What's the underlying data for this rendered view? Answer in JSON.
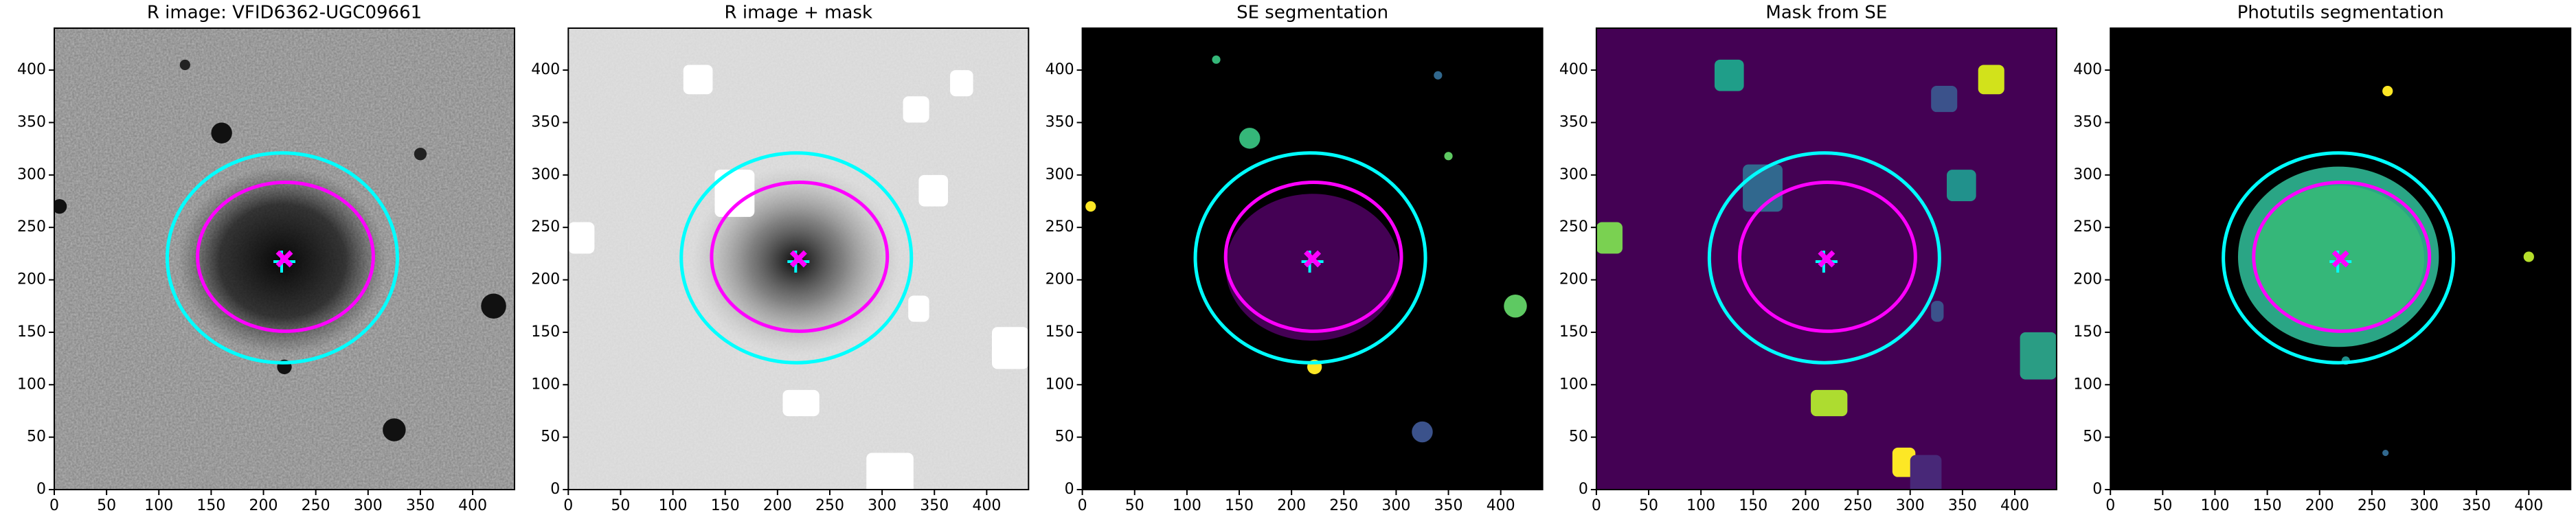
{
  "chart_data": [
    {
      "type": "image",
      "title": "R image: VFID6362-UGC09661",
      "xlim": [
        0,
        440
      ],
      "ylim": [
        0,
        440
      ],
      "xticks": [
        0,
        50,
        100,
        150,
        200,
        250,
        300,
        350,
        400
      ],
      "yticks": [
        0,
        50,
        100,
        150,
        200,
        250,
        300,
        350,
        400
      ],
      "ellipses": [
        {
          "color": "#00ffff",
          "x": 218,
          "y": 221,
          "rx": 110,
          "ry": 100
        },
        {
          "color": "#ff00ff",
          "x": 221,
          "y": 222,
          "rx": 84,
          "ry": 71
        }
      ],
      "marker": {
        "x": 220,
        "y": 220
      }
    },
    {
      "type": "image",
      "title": "R image + mask",
      "xlim": [
        0,
        440
      ],
      "ylim": [
        0,
        440
      ],
      "xticks": [
        0,
        50,
        100,
        150,
        200,
        250,
        300,
        350,
        400
      ],
      "yticks": [
        0,
        50,
        100,
        150,
        200,
        250,
        300,
        350,
        400
      ],
      "ellipses": [
        {
          "color": "#00ffff",
          "x": 218,
          "y": 221,
          "rx": 110,
          "ry": 100
        },
        {
          "color": "#ff00ff",
          "x": 221,
          "y": 222,
          "rx": 84,
          "ry": 71
        }
      ],
      "marker": {
        "x": 220,
        "y": 220
      }
    },
    {
      "type": "image",
      "title": "SE segmentation",
      "xlim": [
        0,
        440
      ],
      "ylim": [
        0,
        440
      ],
      "xticks": [
        0,
        50,
        100,
        150,
        200,
        250,
        300,
        350,
        400
      ],
      "yticks": [
        0,
        50,
        100,
        150,
        200,
        250,
        300,
        350,
        400
      ],
      "ellipses": [
        {
          "color": "#00ffff",
          "x": 218,
          "y": 221,
          "rx": 110,
          "ry": 100
        },
        {
          "color": "#ff00ff",
          "x": 221,
          "y": 222,
          "rx": 84,
          "ry": 71
        }
      ],
      "marker": {
        "x": 220,
        "y": 220
      }
    },
    {
      "type": "image",
      "title": "Mask from SE",
      "xlim": [
        0,
        440
      ],
      "ylim": [
        0,
        440
      ],
      "xticks": [
        0,
        50,
        100,
        150,
        200,
        250,
        300,
        350,
        400
      ],
      "yticks": [
        0,
        50,
        100,
        150,
        200,
        250,
        300,
        350,
        400
      ],
      "ellipses": [
        {
          "color": "#00ffff",
          "x": 218,
          "y": 221,
          "rx": 110,
          "ry": 100
        },
        {
          "color": "#ff00ff",
          "x": 221,
          "y": 222,
          "rx": 84,
          "ry": 71
        }
      ],
      "marker": {
        "x": 220,
        "y": 220
      }
    },
    {
      "type": "image",
      "title": "Photutils segmentation",
      "xlim": [
        0,
        440
      ],
      "ylim": [
        0,
        440
      ],
      "xticks": [
        0,
        50,
        100,
        150,
        200,
        250,
        300,
        350,
        400
      ],
      "yticks": [
        0,
        50,
        100,
        150,
        200,
        250,
        300,
        350,
        400
      ],
      "ellipses": [
        {
          "color": "#00ffff",
          "x": 218,
          "y": 221,
          "rx": 110,
          "ry": 100
        },
        {
          "color": "#ff00ff",
          "x": 221,
          "y": 222,
          "rx": 84,
          "ry": 71
        }
      ],
      "marker": {
        "x": 220,
        "y": 220
      }
    }
  ]
}
